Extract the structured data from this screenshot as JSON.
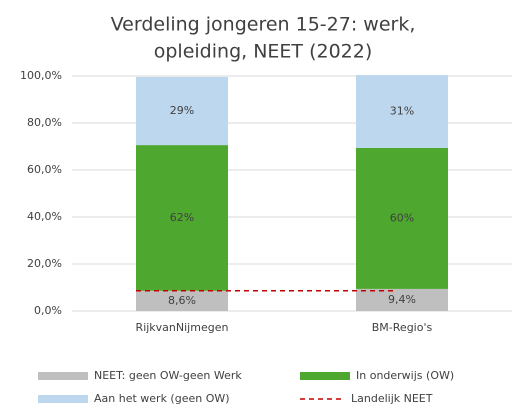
{
  "chart_data": {
    "type": "stacked_bar",
    "title": [
      "Verdeling jongeren 15-27: werk,",
      "opleiding, NEET (2022)"
    ],
    "categories": [
      "RijkvanNijmegen",
      "BM-Regio's"
    ],
    "series": [
      {
        "name": "NEET: geen OW-geen Werk",
        "color": "#bfbfbf",
        "values": [
          8.6,
          9.4
        ],
        "value_labels": [
          "8,6%",
          "9,4%"
        ]
      },
      {
        "name": "In onderwijs (OW)",
        "color": "#4ea72e",
        "values": [
          62,
          60
        ],
        "value_labels": [
          "62%",
          "60%"
        ]
      },
      {
        "name": "Aan het werk (geen OW)",
        "color": "#bdd7ee",
        "values": [
          29,
          31
        ],
        "value_labels": [
          "29%",
          "31%"
        ]
      }
    ],
    "reference_line": {
      "name": "Landelijk NEET",
      "color": "#c00000",
      "value": 8.6
    },
    "ylim": [
      0,
      100
    ],
    "yticks": [
      {
        "value": 0,
        "label": "0,0%"
      },
      {
        "value": 20,
        "label": "20,0%"
      },
      {
        "value": 40,
        "label": "40,0%"
      },
      {
        "value": 60,
        "label": "60,0%"
      },
      {
        "value": 80,
        "label": "80,0%"
      },
      {
        "value": 100,
        "label": "100,0%"
      }
    ],
    "grid": true
  }
}
